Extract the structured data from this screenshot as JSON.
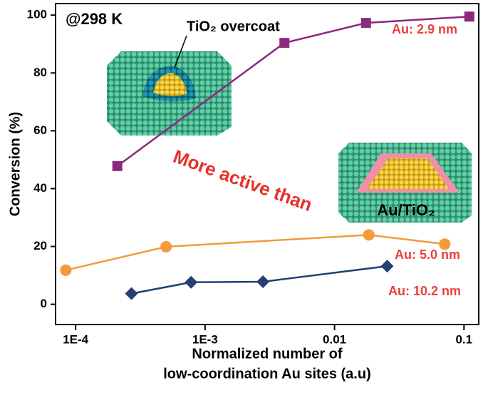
{
  "chart_data": {
    "type": "line",
    "xlabel": [
      "Normalized number of",
      "low-coordination Au sites (a.u)"
    ],
    "ylabel": "Conversion (%)",
    "xscale": "log",
    "xlim": [
      7e-05,
      0.13
    ],
    "ylim": [
      -7,
      104
    ],
    "xticks": [
      {
        "value": 0.0001,
        "label": "1E-4"
      },
      {
        "value": 0.001,
        "label": "1E-3"
      },
      0.01,
      0.1
    ],
    "yticks": [
      0,
      20,
      40,
      60,
      80,
      100
    ],
    "annotations": [
      "@298 K",
      "TiO₂ overcoat",
      "More active than",
      "Au/TiO₂"
    ],
    "series": [
      {
        "name": "Au: 2.9 nm",
        "color": "#8b2a7e",
        "marker": "square",
        "x": [
          0.00021,
          0.0041,
          0.0175,
          0.11
        ],
        "values": [
          47.8,
          90.4,
          97.3,
          99.5
        ]
      },
      {
        "name": "Au: 5.0 nm",
        "color": "#f39a3c",
        "marker": "circle",
        "x": [
          8.4e-05,
          0.0005,
          0.0184,
          0.071
        ],
        "values": [
          11.8,
          19.9,
          24,
          20.8
        ]
      },
      {
        "name": "Au: 10.2 nm",
        "color": "#233f73",
        "marker": "diamond",
        "x": [
          0.00027,
          0.00078,
          0.0028,
          0.0255
        ],
        "values": [
          3.7,
          7.6,
          7.8,
          13.2
        ]
      }
    ]
  }
}
